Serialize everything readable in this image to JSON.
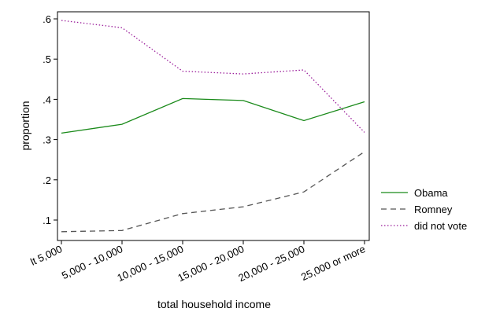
{
  "chart_data": {
    "type": "line",
    "title": "",
    "xlabel": "total household income",
    "ylabel": "proportion",
    "categories": [
      "lt 5,000",
      "5,000 - 10,000",
      "10,000 - 15,000",
      "15,000 - 20,000",
      "20,000 - 25,000",
      "25,000 or more"
    ],
    "yticks": [
      ".1",
      ".2",
      ".3",
      ".4",
      ".5",
      ".6"
    ],
    "ylim": [
      0.07,
      0.62
    ],
    "grid": false,
    "legend_position": "right",
    "series": [
      {
        "name": "Obama",
        "style": "solid",
        "color": "#1a8a1a",
        "values": [
          0.316,
          0.338,
          0.402,
          0.397,
          0.347,
          0.394
        ]
      },
      {
        "name": "Romney",
        "style": "dashed",
        "color": "#555555",
        "values": [
          0.071,
          0.074,
          0.116,
          0.133,
          0.17,
          0.27
        ]
      },
      {
        "name": "did not vote",
        "style": "dotted",
        "color": "#9b1f9b",
        "values": [
          0.596,
          0.578,
          0.47,
          0.463,
          0.473,
          0.318
        ]
      }
    ]
  }
}
